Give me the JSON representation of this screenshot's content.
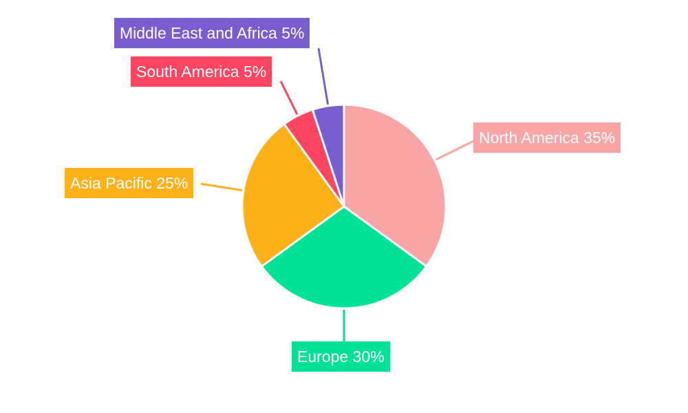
{
  "chart_data": {
    "type": "pie",
    "title": "",
    "start_angle": "top",
    "direction": "clockwise",
    "slices": [
      {
        "label": "North America",
        "value": 35,
        "text": "North America 35%",
        "color": "#F9A5A6"
      },
      {
        "label": "Europe",
        "value": 30,
        "text": "Europe 30%",
        "color": "#00E396"
      },
      {
        "label": "Asia Pacific",
        "value": 25,
        "text": "Asia Pacific 25%",
        "color": "#FEB019"
      },
      {
        "label": "South America",
        "value": 5,
        "text": "South America 5%",
        "color": "#FF4560"
      },
      {
        "label": "Middle East and Africa",
        "value": 5,
        "text": "Middle East and Africa 5%",
        "color": "#775DD0"
      }
    ]
  }
}
